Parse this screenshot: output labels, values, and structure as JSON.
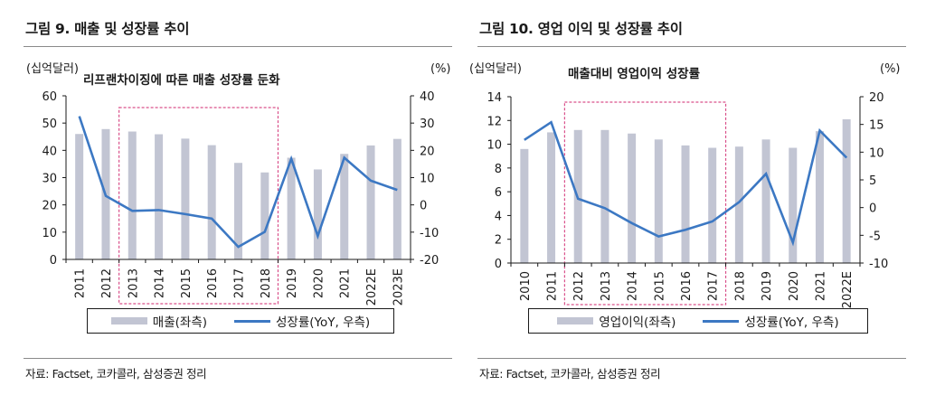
{
  "colors": {
    "bar": "#c2c5d3",
    "line": "#3c78c3",
    "highlight": "#d9508a",
    "axis": "#1a1a1a"
  },
  "chart_data": [
    {
      "type": "bar+line",
      "title": "그림 9.  매출 및 성장률 추이",
      "annotation": "리프랜차이징에 따른 매출 성장률 둔화",
      "left_unit": "(십억달러)",
      "right_unit": "(%)",
      "categories": [
        "2011",
        "2012",
        "2013",
        "2014",
        "2015",
        "2016",
        "2017",
        "2018",
        "2019",
        "2020",
        "2021",
        "2022E",
        "2023E"
      ],
      "highlight_range": [
        "2013",
        "2018"
      ],
      "left_axis": {
        "ylim": [
          0,
          60
        ],
        "ticks": [
          "0",
          "10",
          "20",
          "30",
          "40",
          "50",
          "60"
        ]
      },
      "right_axis": {
        "ylim": [
          -20,
          40
        ],
        "ticks": [
          "-20",
          "-10",
          "0",
          "10",
          "20",
          "30",
          "40"
        ]
      },
      "series": [
        {
          "name": "매출(좌측)",
          "type": "bar",
          "axis": "left",
          "values": [
            46.0,
            47.8,
            46.9,
            45.9,
            44.3,
            41.9,
            35.4,
            31.9,
            37.3,
            33.0,
            38.7,
            41.8,
            44.2
          ]
        },
        {
          "name": "성장률(YoY, 우측)",
          "type": "line",
          "axis": "right",
          "values": [
            32.5,
            3.3,
            -2.2,
            -1.9,
            -3.4,
            -5.0,
            -15.4,
            -9.9,
            16.9,
            -11.4,
            17.3,
            8.9,
            5.5
          ]
        }
      ],
      "legend": [
        "매출(좌측)",
        "성장률(YoY, 우측)"
      ],
      "legend_position": "bottom",
      "source": "자료: Factset, 코카콜라, 삼성증권 정리"
    },
    {
      "type": "bar+line",
      "title": "그림 10. 영업 이익 및 성장률 추이",
      "annotation": "매출대비 영업이익 성장률",
      "left_unit": "(십억달러)",
      "right_unit": "(%)",
      "categories": [
        "2010",
        "2011",
        "2012",
        "2013",
        "2014",
        "2015",
        "2016",
        "2017",
        "2018",
        "2019",
        "2020",
        "2021",
        "2022E"
      ],
      "highlight_range": [
        "2012",
        "2017"
      ],
      "left_axis": {
        "ylim": [
          0,
          14
        ],
        "ticks": [
          "0",
          "2",
          "4",
          "6",
          "8",
          "10",
          "12",
          "14"
        ]
      },
      "right_axis": {
        "ylim": [
          -10,
          20
        ],
        "ticks": [
          "-10",
          "-5",
          "0",
          "5",
          "10",
          "15",
          "20"
        ]
      },
      "series": [
        {
          "name": "영업이익(좌측)",
          "type": "bar",
          "axis": "left",
          "values": [
            9.6,
            11.0,
            11.2,
            11.2,
            10.9,
            10.4,
            9.9,
            9.7,
            9.8,
            10.4,
            9.7,
            11.1,
            12.1
          ]
        },
        {
          "name": "성장률(YoY, 우측)",
          "type": "line",
          "axis": "right",
          "values": [
            12.2,
            15.4,
            1.6,
            -0.1,
            -2.8,
            -5.2,
            -4.0,
            -2.5,
            1.0,
            6.1,
            -6.3,
            13.9,
            9.0
          ]
        }
      ],
      "legend": [
        "영업이익(좌측)",
        "성장률(YoY, 우측)"
      ],
      "legend_position": "bottom",
      "source": "자료: Factset, 코카콜라, 삼성증권 정리"
    }
  ]
}
